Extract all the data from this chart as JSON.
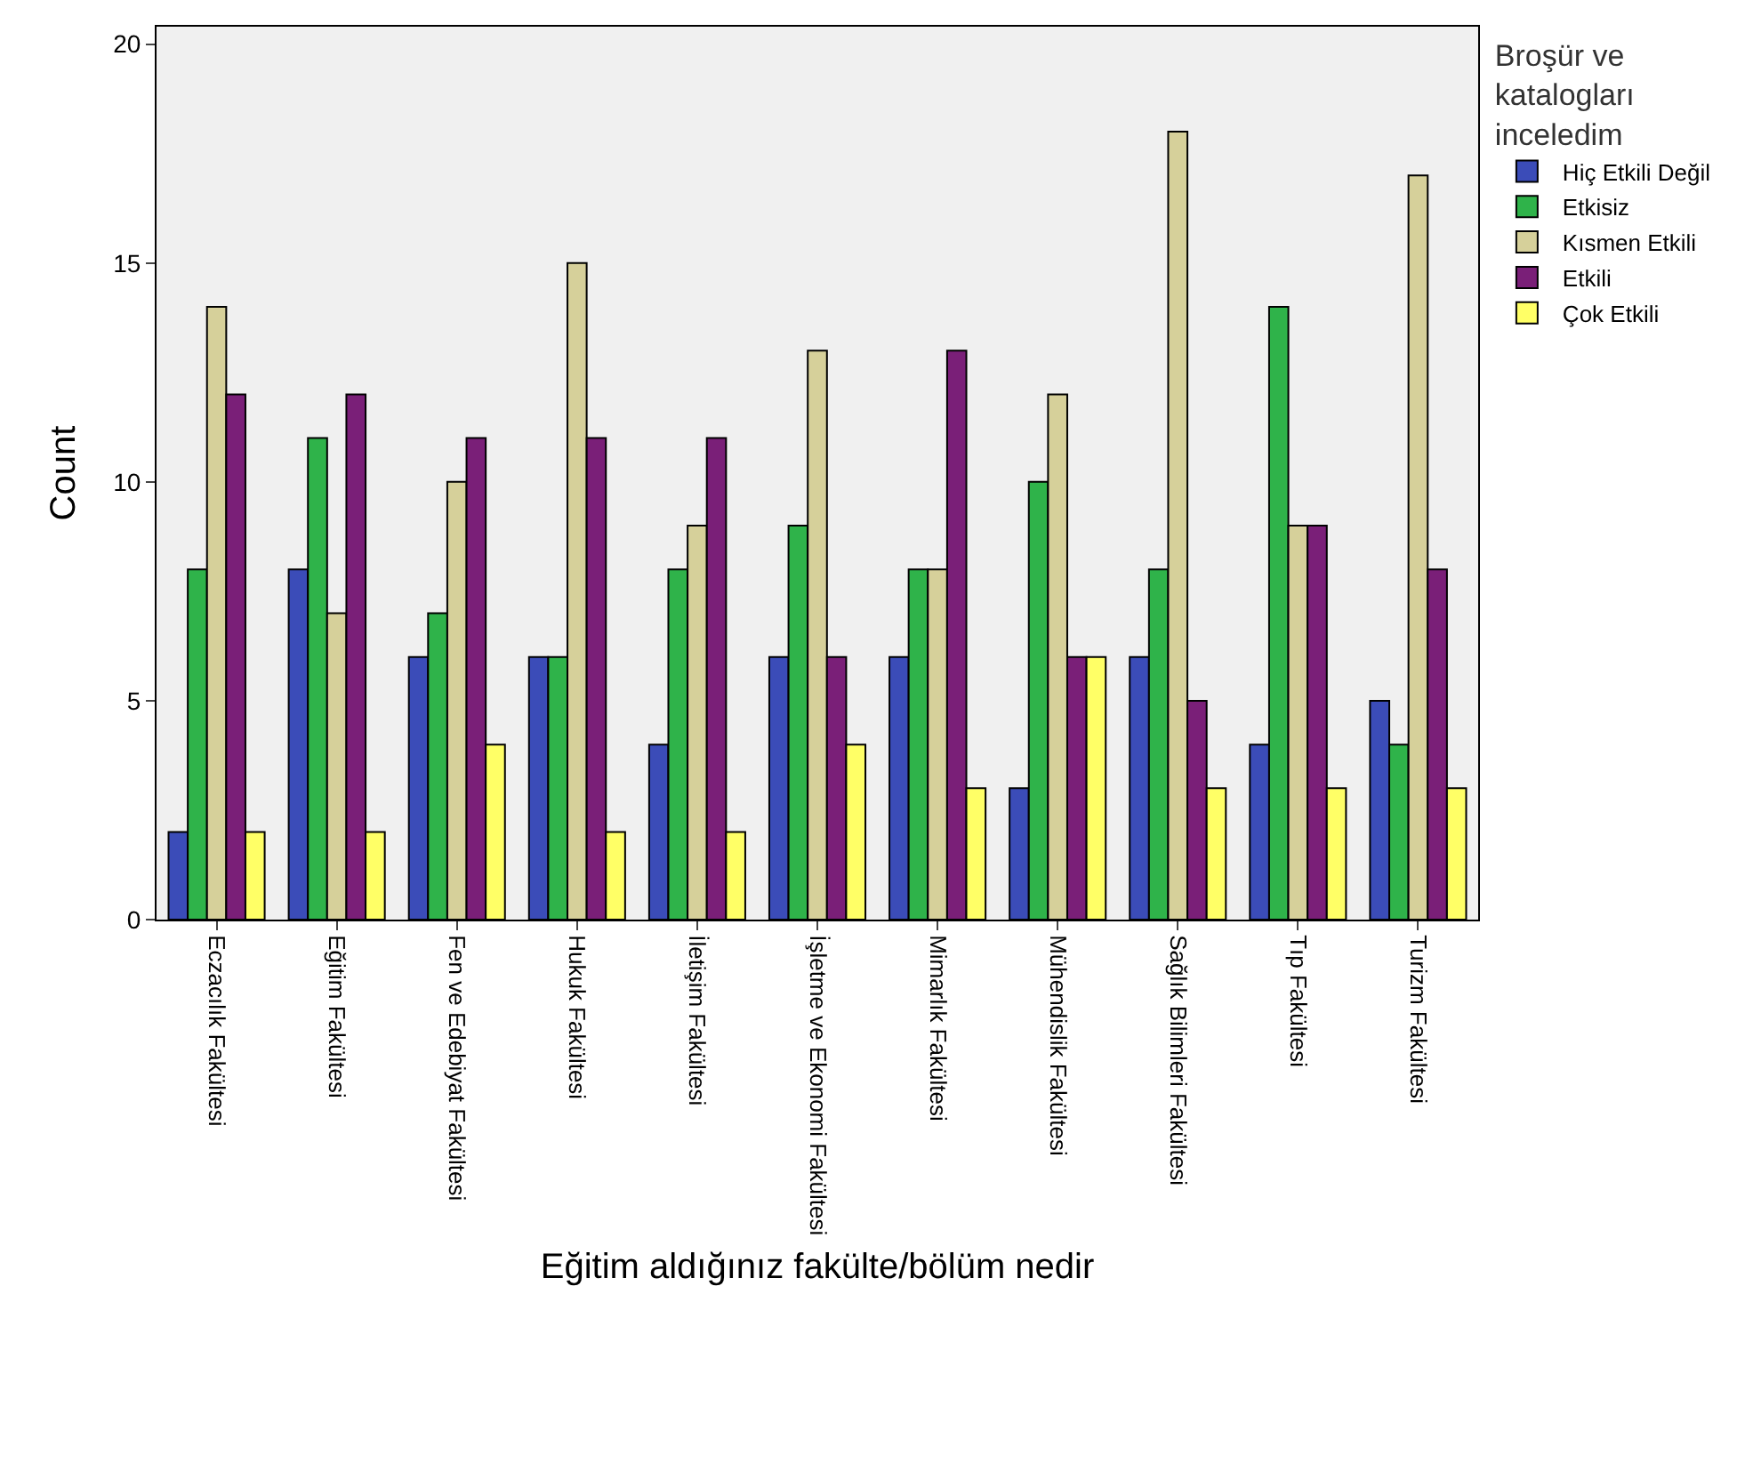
{
  "chart_data": {
    "type": "bar",
    "xlabel": "Eğitim aldığınız fakülte/bölüm nedir",
    "ylabel": "Count",
    "legend_title": "Broşür ve\nkatalogları\ninceledim",
    "legend": "right",
    "grid": false,
    "ylim": [
      0,
      20.4
    ],
    "yticks": [
      0,
      5,
      10,
      15,
      20
    ],
    "categories": [
      "Eczacılık Fakültesi",
      "Eğitim Fakültesi",
      "Fen ve Edebiyat Fakültesi",
      "Hukuk Fakültesi",
      "İletişim Fakültesi",
      "İşletme ve Ekonomi Fakültesi",
      "Mimarlık Fakültesi",
      "Mühendislik Fakültesi",
      "Sağlık Bilimleri Fakültesi",
      "Tıp Fakültesi",
      "Turizm Fakültesi"
    ],
    "series": [
      {
        "name": "Hiç Etkili Değil",
        "color": "#3b4cb8",
        "values": [
          2,
          8,
          6,
          6,
          4,
          6,
          6,
          3,
          6,
          4,
          5
        ]
      },
      {
        "name": "Etkisiz",
        "color": "#2fb34a",
        "values": [
          8,
          11,
          7,
          6,
          8,
          9,
          8,
          10,
          8,
          14,
          4
        ]
      },
      {
        "name": "Kısmen Etkili",
        "color": "#d6d09a",
        "values": [
          14,
          7,
          10,
          15,
          9,
          13,
          8,
          12,
          18,
          9,
          17
        ]
      },
      {
        "name": "Etkili",
        "color": "#7a1f78",
        "values": [
          12,
          12,
          11,
          11,
          11,
          6,
          13,
          6,
          5,
          9,
          8
        ]
      },
      {
        "name": "Çok Etkili",
        "color": "#ffff66",
        "values": [
          2,
          2,
          4,
          2,
          2,
          4,
          3,
          6,
          3,
          3,
          3
        ]
      }
    ]
  }
}
